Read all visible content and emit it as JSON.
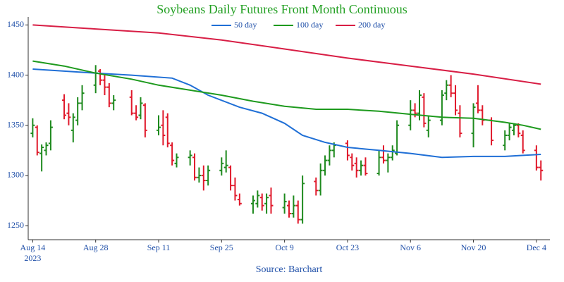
{
  "chart_data": {
    "type": "ohlc",
    "title": "Soybeans Daily Futures Front Month Continuous",
    "source": "Source: Barchart",
    "up_color": "#1e8a1e",
    "down_color": "#e0192b",
    "xlim": [
      "2023-08-13",
      "2023-12-07"
    ],
    "xticks": [
      {
        "value": "2023-08-14",
        "label": "Aug 14"
      },
      {
        "value": "2023-08-28",
        "label": "Aug 28"
      },
      {
        "value": "2023-09-11",
        "label": "Sep 11"
      },
      {
        "value": "2023-09-25",
        "label": "Sep 25"
      },
      {
        "value": "2023-10-09",
        "label": "Oct 9"
      },
      {
        "value": "2023-10-23",
        "label": "Oct 23"
      },
      {
        "value": "2023-11-06",
        "label": "Nov 6"
      },
      {
        "value": "2023-11-20",
        "label": "Nov 20"
      },
      {
        "value": "2023-12-04",
        "label": "Dec 4"
      }
    ],
    "xtick_year": "2023",
    "ylim": [
      1236,
      1458
    ],
    "yticks": [
      1250,
      1300,
      1350,
      1400,
      1450
    ],
    "x": [
      "2023-08-14",
      "2023-08-15",
      "2023-08-16",
      "2023-08-17",
      "2023-08-18",
      "2023-08-21",
      "2023-08-22",
      "2023-08-23",
      "2023-08-24",
      "2023-08-25",
      "2023-08-28",
      "2023-08-29",
      "2023-08-30",
      "2023-08-31",
      "2023-09-01",
      "2023-09-05",
      "2023-09-06",
      "2023-09-07",
      "2023-09-08",
      "2023-09-11",
      "2023-09-12",
      "2023-09-13",
      "2023-09-14",
      "2023-09-15",
      "2023-09-18",
      "2023-09-19",
      "2023-09-20",
      "2023-09-21",
      "2023-09-22",
      "2023-09-25",
      "2023-09-26",
      "2023-09-27",
      "2023-09-28",
      "2023-09-29",
      "2023-10-02",
      "2023-10-03",
      "2023-10-04",
      "2023-10-05",
      "2023-10-06",
      "2023-10-09",
      "2023-10-10",
      "2023-10-11",
      "2023-10-12",
      "2023-10-13",
      "2023-10-16",
      "2023-10-17",
      "2023-10-18",
      "2023-10-19",
      "2023-10-20",
      "2023-10-23",
      "2023-10-24",
      "2023-10-25",
      "2023-10-26",
      "2023-10-27",
      "2023-10-30",
      "2023-10-31",
      "2023-11-01",
      "2023-11-02",
      "2023-11-03",
      "2023-11-06",
      "2023-11-07",
      "2023-11-08",
      "2023-11-09",
      "2023-11-10",
      "2023-11-13",
      "2023-11-14",
      "2023-11-15",
      "2023-11-16",
      "2023-11-17",
      "2023-11-20",
      "2023-11-21",
      "2023-11-22",
      "2023-11-24",
      "2023-11-27",
      "2023-11-28",
      "2023-11-29",
      "2023-11-30",
      "2023-12-01",
      "2023-12-04",
      "2023-12-05"
    ],
    "open": [
      1342,
      1348,
      1322,
      1325,
      1332,
      1375,
      1362,
      1345,
      1355,
      1372,
      1390,
      1404,
      1395,
      1388,
      1372,
      1378,
      1362,
      1360,
      1370,
      1345,
      1350,
      1358,
      1330,
      1312,
      1318,
      1318,
      1298,
      1300,
      1295,
      1305,
      1308,
      1308,
      1290,
      1276,
      1272,
      1272,
      1278,
      1272,
      1280,
      1268,
      1270,
      1262,
      1270,
      1256,
      1294,
      1285,
      1305,
      1315,
      1325,
      1332,
      1318,
      1312,
      1305,
      1310,
      1302,
      1318,
      1315,
      1318,
      1322,
      1350,
      1365,
      1362,
      1378,
      1345,
      1355,
      1382,
      1390,
      1382,
      1362,
      1342,
      1372,
      1365,
      1355,
      1330,
      1340,
      1345,
      1350,
      1340,
      1325,
      1308
    ],
    "high": [
      1357,
      1350,
      1331,
      1333,
      1355,
      1381,
      1372,
      1362,
      1378,
      1390,
      1410,
      1406,
      1400,
      1392,
      1380,
      1385,
      1370,
      1378,
      1372,
      1360,
      1365,
      1362,
      1333,
      1322,
      1325,
      1322,
      1308,
      1310,
      1310,
      1318,
      1325,
      1310,
      1298,
      1282,
      1280,
      1285,
      1282,
      1282,
      1288,
      1282,
      1275,
      1280,
      1275,
      1300,
      1298,
      1312,
      1320,
      1330,
      1333,
      1335,
      1322,
      1318,
      1315,
      1318,
      1325,
      1330,
      1322,
      1330,
      1355,
      1375,
      1372,
      1385,
      1382,
      1360,
      1385,
      1395,
      1400,
      1390,
      1370,
      1372,
      1390,
      1370,
      1358,
      1345,
      1352,
      1352,
      1352,
      1345,
      1330,
      1315
    ],
    "low": [
      1338,
      1320,
      1304,
      1320,
      1325,
      1356,
      1350,
      1333,
      1350,
      1365,
      1382,
      1390,
      1380,
      1368,
      1365,
      1360,
      1355,
      1356,
      1338,
      1340,
      1330,
      1328,
      1310,
      1308,
      1310,
      1295,
      1293,
      1285,
      1290,
      1300,
      1303,
      1285,
      1275,
      1270,
      1262,
      1268,
      1265,
      1262,
      1262,
      1262,
      1258,
      1258,
      1252,
      1252,
      1280,
      1280,
      1300,
      1310,
      1318,
      1315,
      1305,
      1298,
      1300,
      1300,
      1300,
      1312,
      1303,
      1315,
      1320,
      1345,
      1358,
      1355,
      1348,
      1338,
      1350,
      1375,
      1378,
      1360,
      1338,
      1328,
      1362,
      1350,
      1330,
      1325,
      1335,
      1340,
      1338,
      1322,
      1305,
      1295
    ],
    "close": [
      1350,
      1323,
      1328,
      1330,
      1348,
      1360,
      1358,
      1358,
      1372,
      1382,
      1402,
      1395,
      1388,
      1372,
      1375,
      1362,
      1358,
      1372,
      1345,
      1348,
      1340,
      1332,
      1315,
      1318,
      1320,
      1298,
      1300,
      1295,
      1305,
      1312,
      1310,
      1290,
      1280,
      1272,
      1275,
      1280,
      1270,
      1278,
      1270,
      1274,
      1262,
      1270,
      1256,
      1292,
      1285,
      1305,
      1315,
      1325,
      1330,
      1320,
      1310,
      1305,
      1310,
      1302,
      1318,
      1315,
      1318,
      1325,
      1350,
      1365,
      1362,
      1380,
      1352,
      1355,
      1380,
      1390,
      1382,
      1365,
      1342,
      1368,
      1365,
      1355,
      1335,
      1340,
      1348,
      1350,
      1342,
      1325,
      1308,
      1305
    ],
    "series": [
      {
        "name": "50 day",
        "color": "#1f6fd6",
        "x": [
          "2023-08-14",
          "2023-08-28",
          "2023-09-05",
          "2023-09-14",
          "2023-09-18",
          "2023-09-22",
          "2023-09-29",
          "2023-10-04",
          "2023-10-09",
          "2023-10-13",
          "2023-10-18",
          "2023-10-23",
          "2023-10-30",
          "2023-11-06",
          "2023-11-13",
          "2023-11-20",
          "2023-11-27",
          "2023-12-01",
          "2023-12-05"
        ],
        "values": [
          1406,
          1402,
          1400,
          1397,
          1390,
          1380,
          1368,
          1362,
          1352,
          1340,
          1333,
          1328,
          1325,
          1322,
          1318,
          1319,
          1319,
          1320,
          1321
        ]
      },
      {
        "name": "100 day",
        "color": "#1e9a1e",
        "x": [
          "2023-08-14",
          "2023-08-21",
          "2023-08-28",
          "2023-09-05",
          "2023-09-11",
          "2023-09-18",
          "2023-09-25",
          "2023-10-02",
          "2023-10-09",
          "2023-10-16",
          "2023-10-23",
          "2023-10-30",
          "2023-11-06",
          "2023-11-13",
          "2023-11-20",
          "2023-11-27",
          "2023-12-01",
          "2023-12-05"
        ],
        "values": [
          1414,
          1409,
          1402,
          1396,
          1390,
          1385,
          1380,
          1374,
          1369,
          1366,
          1366,
          1364,
          1361,
          1358,
          1357,
          1353,
          1350,
          1346
        ]
      },
      {
        "name": "200 day",
        "color": "#d81e45",
        "x": [
          "2023-08-14",
          "2023-08-28",
          "2023-09-11",
          "2023-09-25",
          "2023-10-09",
          "2023-10-23",
          "2023-11-06",
          "2023-11-20",
          "2023-12-05"
        ],
        "values": [
          1450,
          1446,
          1442,
          1435,
          1426,
          1417,
          1409,
          1401,
          1391
        ]
      }
    ]
  }
}
